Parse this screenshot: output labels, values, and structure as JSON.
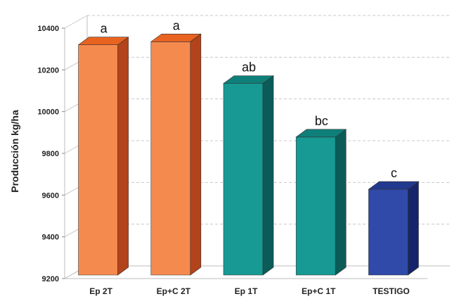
{
  "chart_data": {
    "type": "bar",
    "ylabel": "Producción kg/ha",
    "ylim": [
      9200,
      10400
    ],
    "yticks": [
      9200,
      9400,
      9600,
      9800,
      10000,
      10200,
      10400
    ],
    "grid": true,
    "style": "3d",
    "categories": [
      "Ep 2T",
      "Ep+C 2T",
      "Ep 1T",
      "Ep+C 1T",
      "TESTIGO"
    ],
    "values": [
      10320,
      10335,
      10135,
      9878,
      9628
    ],
    "labels": [
      "a",
      "a",
      "ab",
      "bc",
      "c"
    ],
    "colors": {
      "orange_front": "#f58a4f",
      "orange_side": "#b3431a",
      "orange_top": "#e8631f",
      "teal_front": "#169a93",
      "teal_side": "#0b5c58",
      "teal_top": "#0f7f79",
      "blue_front": "#2f4aa8",
      "blue_side": "#16256b",
      "blue_top": "#22398f",
      "grid": "#c8c8c8",
      "axis": "#bdbdbd"
    },
    "bar_color_keys": [
      "orange",
      "orange",
      "teal",
      "teal",
      "blue"
    ]
  }
}
